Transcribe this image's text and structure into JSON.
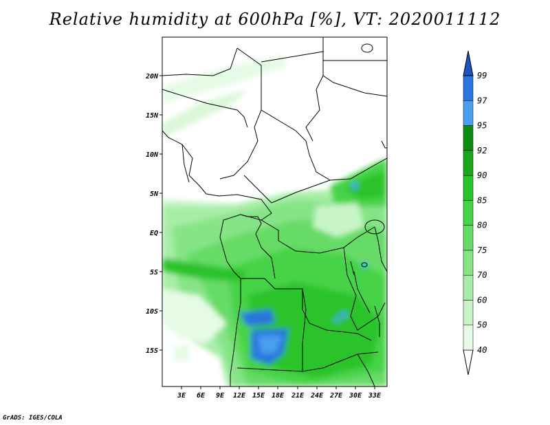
{
  "title": "Relative humidity at 600hPa [%], VT: 2020011112",
  "credit": "GrADS: IGES/COLA",
  "lat_ticks": [
    "20N",
    "15N",
    "10N",
    "5N",
    "EQ",
    "5S",
    "10S",
    "15S"
  ],
  "lon_ticks": [
    "3E",
    "6E",
    "9E",
    "12E",
    "15E",
    "18E",
    "21E",
    "24E",
    "27E",
    "30E",
    "33E"
  ],
  "colorbar": {
    "levels": [
      "40",
      "50",
      "60",
      "70",
      "75",
      "80",
      "85",
      "90",
      "92",
      "95",
      "97",
      "99"
    ],
    "colors": [
      "#ffffff",
      "#e6fbe6",
      "#c8f4c8",
      "#a7eda7",
      "#86e486",
      "#66dc66",
      "#46d346",
      "#2bc32b",
      "#1aa81a",
      "#108c10",
      "#4a9ff0",
      "#2a76de",
      "#1a55bf"
    ]
  }
}
